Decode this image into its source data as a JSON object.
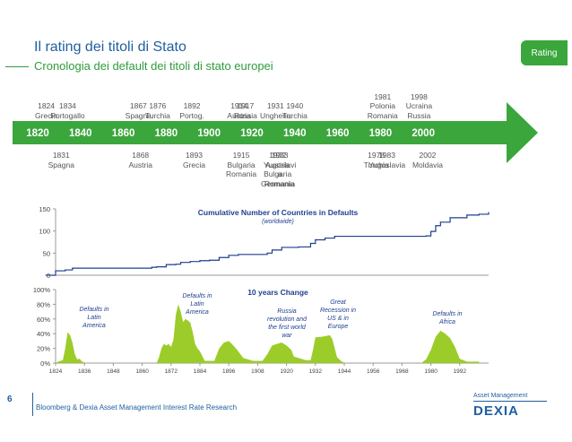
{
  "header": {
    "title": "Il rating dei titoli di Stato",
    "subtitle": "Cronologia dei default dei titoli di stato europei",
    "tag": "Rating"
  },
  "timeline": {
    "years": [
      "1820",
      "1840",
      "1860",
      "1880",
      "1900",
      "1920",
      "1940",
      "1960",
      "1980",
      "2000"
    ],
    "above": [
      {
        "year": "1824",
        "text": "Grecia"
      },
      {
        "year": "1834",
        "text": "Portogallo"
      },
      {
        "year": "1867",
        "text": "Spagna"
      },
      {
        "year": "1876",
        "text": "Turchia"
      },
      {
        "year": "1892",
        "text": "Portog."
      },
      {
        "year": "1914",
        "text": "Austria"
      },
      {
        "year": "1917",
        "text": "Russia"
      },
      {
        "year": "1931",
        "text": "Ungheria"
      },
      {
        "year": "1940",
        "text": "Turchia"
      },
      {
        "year": "1981",
        "text": "Polonia\nRomania"
      },
      {
        "year": "1998",
        "text": "Ucraina\nRussia"
      }
    ],
    "below": [
      {
        "year": "1831",
        "text": "Spagna"
      },
      {
        "year": "1868",
        "text": "Austria"
      },
      {
        "year": "1893",
        "text": "Grecia"
      },
      {
        "year": "1915",
        "text": "Bulgaria\nRomania"
      },
      {
        "year": "1932",
        "text": "Austria\nBulgaria\nGermania"
      },
      {
        "year": "1933",
        "text": "Yugoslavi\na\nRomania"
      },
      {
        "year": "1978",
        "text": "Turchia"
      },
      {
        "year": "1983",
        "text": "Yugoslavia"
      },
      {
        "year": "2002",
        "text": "Moldavia"
      }
    ]
  },
  "footer": {
    "page": "6",
    "source": "Bloomberg & Dexia Asset Management Interest Rate Research",
    "brand_top": "Asset Management",
    "brand": "DEXIA"
  },
  "chart_data": [
    {
      "type": "line",
      "title": "Cumulative Number of Countries in Defaults",
      "subtitle": "(worldwide)",
      "ylim": [
        0,
        150
      ],
      "yticks": [
        "0",
        "50",
        "100",
        "150"
      ],
      "color": "#1f3f8f",
      "points": [
        [
          1820,
          0
        ],
        [
          1824,
          10
        ],
        [
          1826,
          10
        ],
        [
          1828,
          12
        ],
        [
          1831,
          16
        ],
        [
          1858,
          16
        ],
        [
          1864,
          18
        ],
        [
          1866,
          19
        ],
        [
          1870,
          24
        ],
        [
          1872,
          24
        ],
        [
          1874,
          25
        ],
        [
          1876,
          29
        ],
        [
          1880,
          31
        ],
        [
          1884,
          33
        ],
        [
          1888,
          34
        ],
        [
          1892,
          40
        ],
        [
          1896,
          45
        ],
        [
          1900,
          47
        ],
        [
          1912,
          50
        ],
        [
          1914,
          57
        ],
        [
          1918,
          63
        ],
        [
          1925,
          64
        ],
        [
          1930,
          72
        ],
        [
          1932,
          80
        ],
        [
          1936,
          84
        ],
        [
          1940,
          88
        ],
        [
          1978,
          89
        ],
        [
          1980,
          99
        ],
        [
          1982,
          112
        ],
        [
          1984,
          120
        ],
        [
          1988,
          130
        ],
        [
          1995,
          136
        ],
        [
          2000,
          138
        ],
        [
          2004,
          142
        ]
      ]
    },
    {
      "type": "area",
      "title": "10 years Change",
      "ylim": [
        0,
        100
      ],
      "yticks": [
        "0%",
        "20%",
        "40%",
        "60%",
        "80%",
        "100%"
      ],
      "xticks": [
        "1824",
        "1836",
        "1848",
        "1860",
        "1872",
        "1884",
        "1896",
        "1908",
        "1920",
        "1932",
        "1944",
        "1956",
        "1968",
        "1980",
        "1992"
      ],
      "color": "#9ccc2a",
      "points": [
        [
          1824,
          0
        ],
        [
          1825,
          2
        ],
        [
          1827,
          4
        ],
        [
          1828,
          20
        ],
        [
          1829,
          42
        ],
        [
          1830,
          38
        ],
        [
          1831,
          28
        ],
        [
          1832,
          12
        ],
        [
          1833,
          5
        ],
        [
          1834,
          6
        ],
        [
          1835,
          2
        ],
        [
          1837,
          0
        ],
        [
          1866,
          0
        ],
        [
          1867,
          8
        ],
        [
          1868,
          20
        ],
        [
          1869,
          26
        ],
        [
          1870,
          24
        ],
        [
          1871,
          26
        ],
        [
          1872,
          22
        ],
        [
          1873,
          32
        ],
        [
          1874,
          66
        ],
        [
          1875,
          80
        ],
        [
          1876,
          70
        ],
        [
          1877,
          56
        ],
        [
          1878,
          60
        ],
        [
          1879,
          58
        ],
        [
          1880,
          55
        ],
        [
          1881,
          42
        ],
        [
          1882,
          26
        ],
        [
          1883,
          20
        ],
        [
          1884,
          16
        ],
        [
          1886,
          3
        ],
        [
          1890,
          3
        ],
        [
          1892,
          20
        ],
        [
          1894,
          28
        ],
        [
          1896,
          30
        ],
        [
          1897,
          27
        ],
        [
          1899,
          20
        ],
        [
          1902,
          7
        ],
        [
          1906,
          3
        ],
        [
          1910,
          3
        ],
        [
          1912,
          12
        ],
        [
          1914,
          24
        ],
        [
          1916,
          26
        ],
        [
          1918,
          28
        ],
        [
          1920,
          24
        ],
        [
          1922,
          18
        ],
        [
          1923,
          9
        ],
        [
          1926,
          6
        ],
        [
          1928,
          4
        ],
        [
          1930,
          4
        ],
        [
          1931,
          18
        ],
        [
          1932,
          35
        ],
        [
          1935,
          36
        ],
        [
          1938,
          38
        ],
        [
          1939,
          33
        ],
        [
          1941,
          8
        ],
        [
          1943,
          2
        ],
        [
          1945,
          0
        ],
        [
          1976,
          0
        ],
        [
          1978,
          5
        ],
        [
          1980,
          18
        ],
        [
          1982,
          36
        ],
        [
          1984,
          44
        ],
        [
          1986,
          40
        ],
        [
          1988,
          34
        ],
        [
          1990,
          22
        ],
        [
          1992,
          6
        ],
        [
          1995,
          2
        ],
        [
          2000,
          2
        ]
      ],
      "annotations": [
        {
          "text": "Defaults in\nLatin\nAmerica"
        },
        {
          "text": "Defaults in\nLatin\nAmerica"
        },
        {
          "text": "Russia\nrevolution and\nthe first world\nwar"
        },
        {
          "text": "Great\nRecession in\nUS & in\nEurope"
        },
        {
          "text": "Defaults in\nAfrica"
        }
      ]
    }
  ]
}
